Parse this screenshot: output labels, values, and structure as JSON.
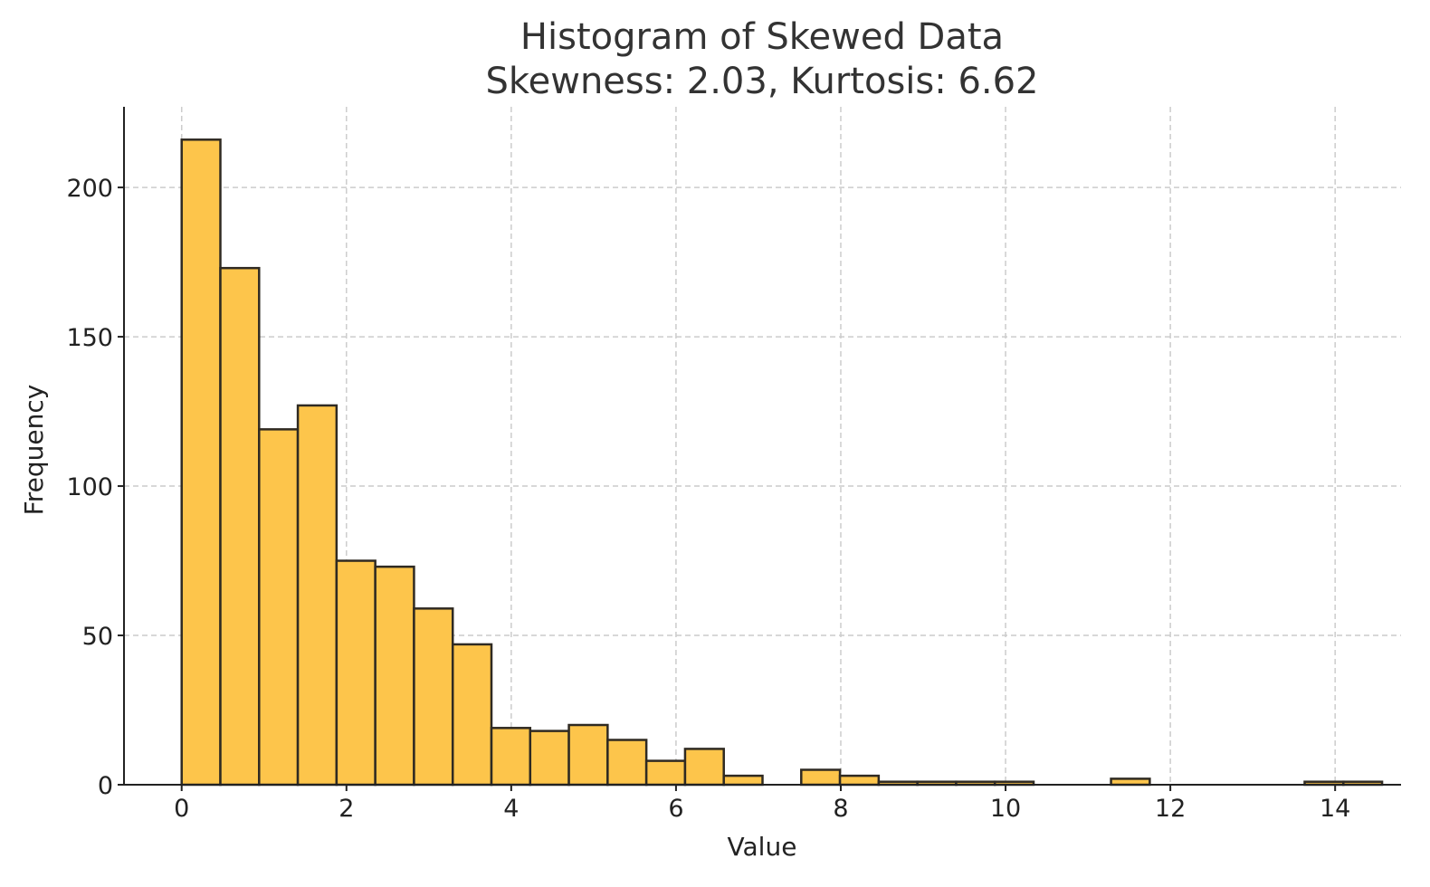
{
  "chart_data": {
    "type": "bar",
    "title": "Histogram of Skewed Data",
    "subtitle": "Skewness: 2.03, Kurtosis: 6.62",
    "xlabel": "Value",
    "ylabel": "Frequency",
    "xlim": [
      -0.7,
      14.8
    ],
    "ylim": [
      0,
      227
    ],
    "xticks": [
      0,
      2,
      4,
      6,
      8,
      10,
      12,
      14
    ],
    "yticks": [
      0,
      50,
      100,
      150,
      200
    ],
    "grid": true,
    "bar_color": "#FDC54B",
    "bar_edge_color": "#2F2A22",
    "bin_start": 0.0,
    "bin_width": 0.47,
    "values": [
      216,
      173,
      119,
      127,
      75,
      73,
      59,
      47,
      19,
      18,
      20,
      15,
      8,
      12,
      3,
      0,
      5,
      3,
      1,
      1,
      1,
      1,
      0,
      0,
      2,
      0,
      0,
      0,
      0,
      1,
      1
    ]
  }
}
